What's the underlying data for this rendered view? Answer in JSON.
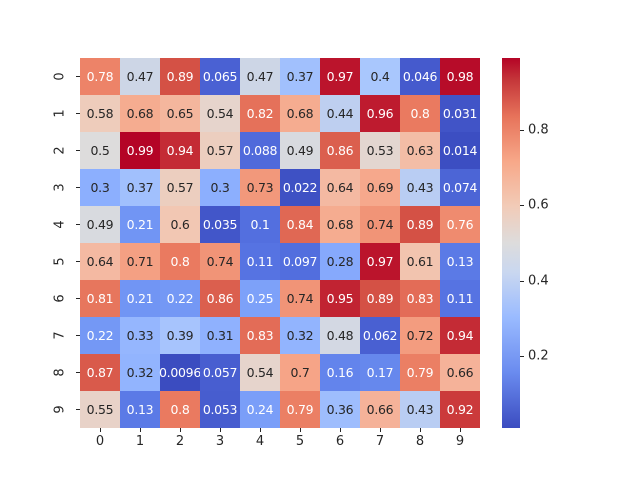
{
  "chart_data": {
    "type": "heatmap",
    "title": "",
    "xlabel": "",
    "ylabel": "",
    "colormap": "coolwarm",
    "x_tick_labels": [
      "0",
      "1",
      "2",
      "3",
      "4",
      "5",
      "6",
      "7",
      "8",
      "9"
    ],
    "y_tick_labels": [
      "0",
      "1",
      "2",
      "3",
      "4",
      "5",
      "6",
      "7",
      "8",
      "9"
    ],
    "values": [
      [
        0.78,
        0.47,
        0.89,
        0.065,
        0.47,
        0.37,
        0.97,
        0.4,
        0.046,
        0.98
      ],
      [
        0.58,
        0.68,
        0.65,
        0.54,
        0.82,
        0.68,
        0.44,
        0.96,
        0.8,
        0.031
      ],
      [
        0.5,
        0.99,
        0.94,
        0.57,
        0.088,
        0.49,
        0.86,
        0.53,
        0.63,
        0.014
      ],
      [
        0.3,
        0.37,
        0.57,
        0.3,
        0.73,
        0.022,
        0.64,
        0.69,
        0.43,
        0.074
      ],
      [
        0.49,
        0.21,
        0.6,
        0.035,
        0.1,
        0.84,
        0.68,
        0.74,
        0.89,
        0.76
      ],
      [
        0.64,
        0.71,
        0.8,
        0.74,
        0.11,
        0.097,
        0.28,
        0.97,
        0.61,
        0.13
      ],
      [
        0.81,
        0.21,
        0.22,
        0.86,
        0.25,
        0.74,
        0.95,
        0.89,
        0.83,
        0.11
      ],
      [
        0.22,
        0.33,
        0.39,
        0.31,
        0.83,
        0.32,
        0.48,
        0.062,
        0.72,
        0.94
      ],
      [
        0.87,
        0.32,
        0.0096,
        0.057,
        0.54,
        0.7,
        0.16,
        0.17,
        0.79,
        0.66
      ],
      [
        0.55,
        0.13,
        0.8,
        0.053,
        0.24,
        0.79,
        0.36,
        0.66,
        0.43,
        0.92
      ]
    ],
    "colorbar": {
      "range": [
        0.0096,
        0.99
      ],
      "ticks": [
        0.2,
        0.4,
        0.6,
        0.8
      ],
      "tick_labels": [
        "0.2",
        "0.4",
        "0.6",
        "0.8"
      ]
    },
    "annotations": true
  }
}
